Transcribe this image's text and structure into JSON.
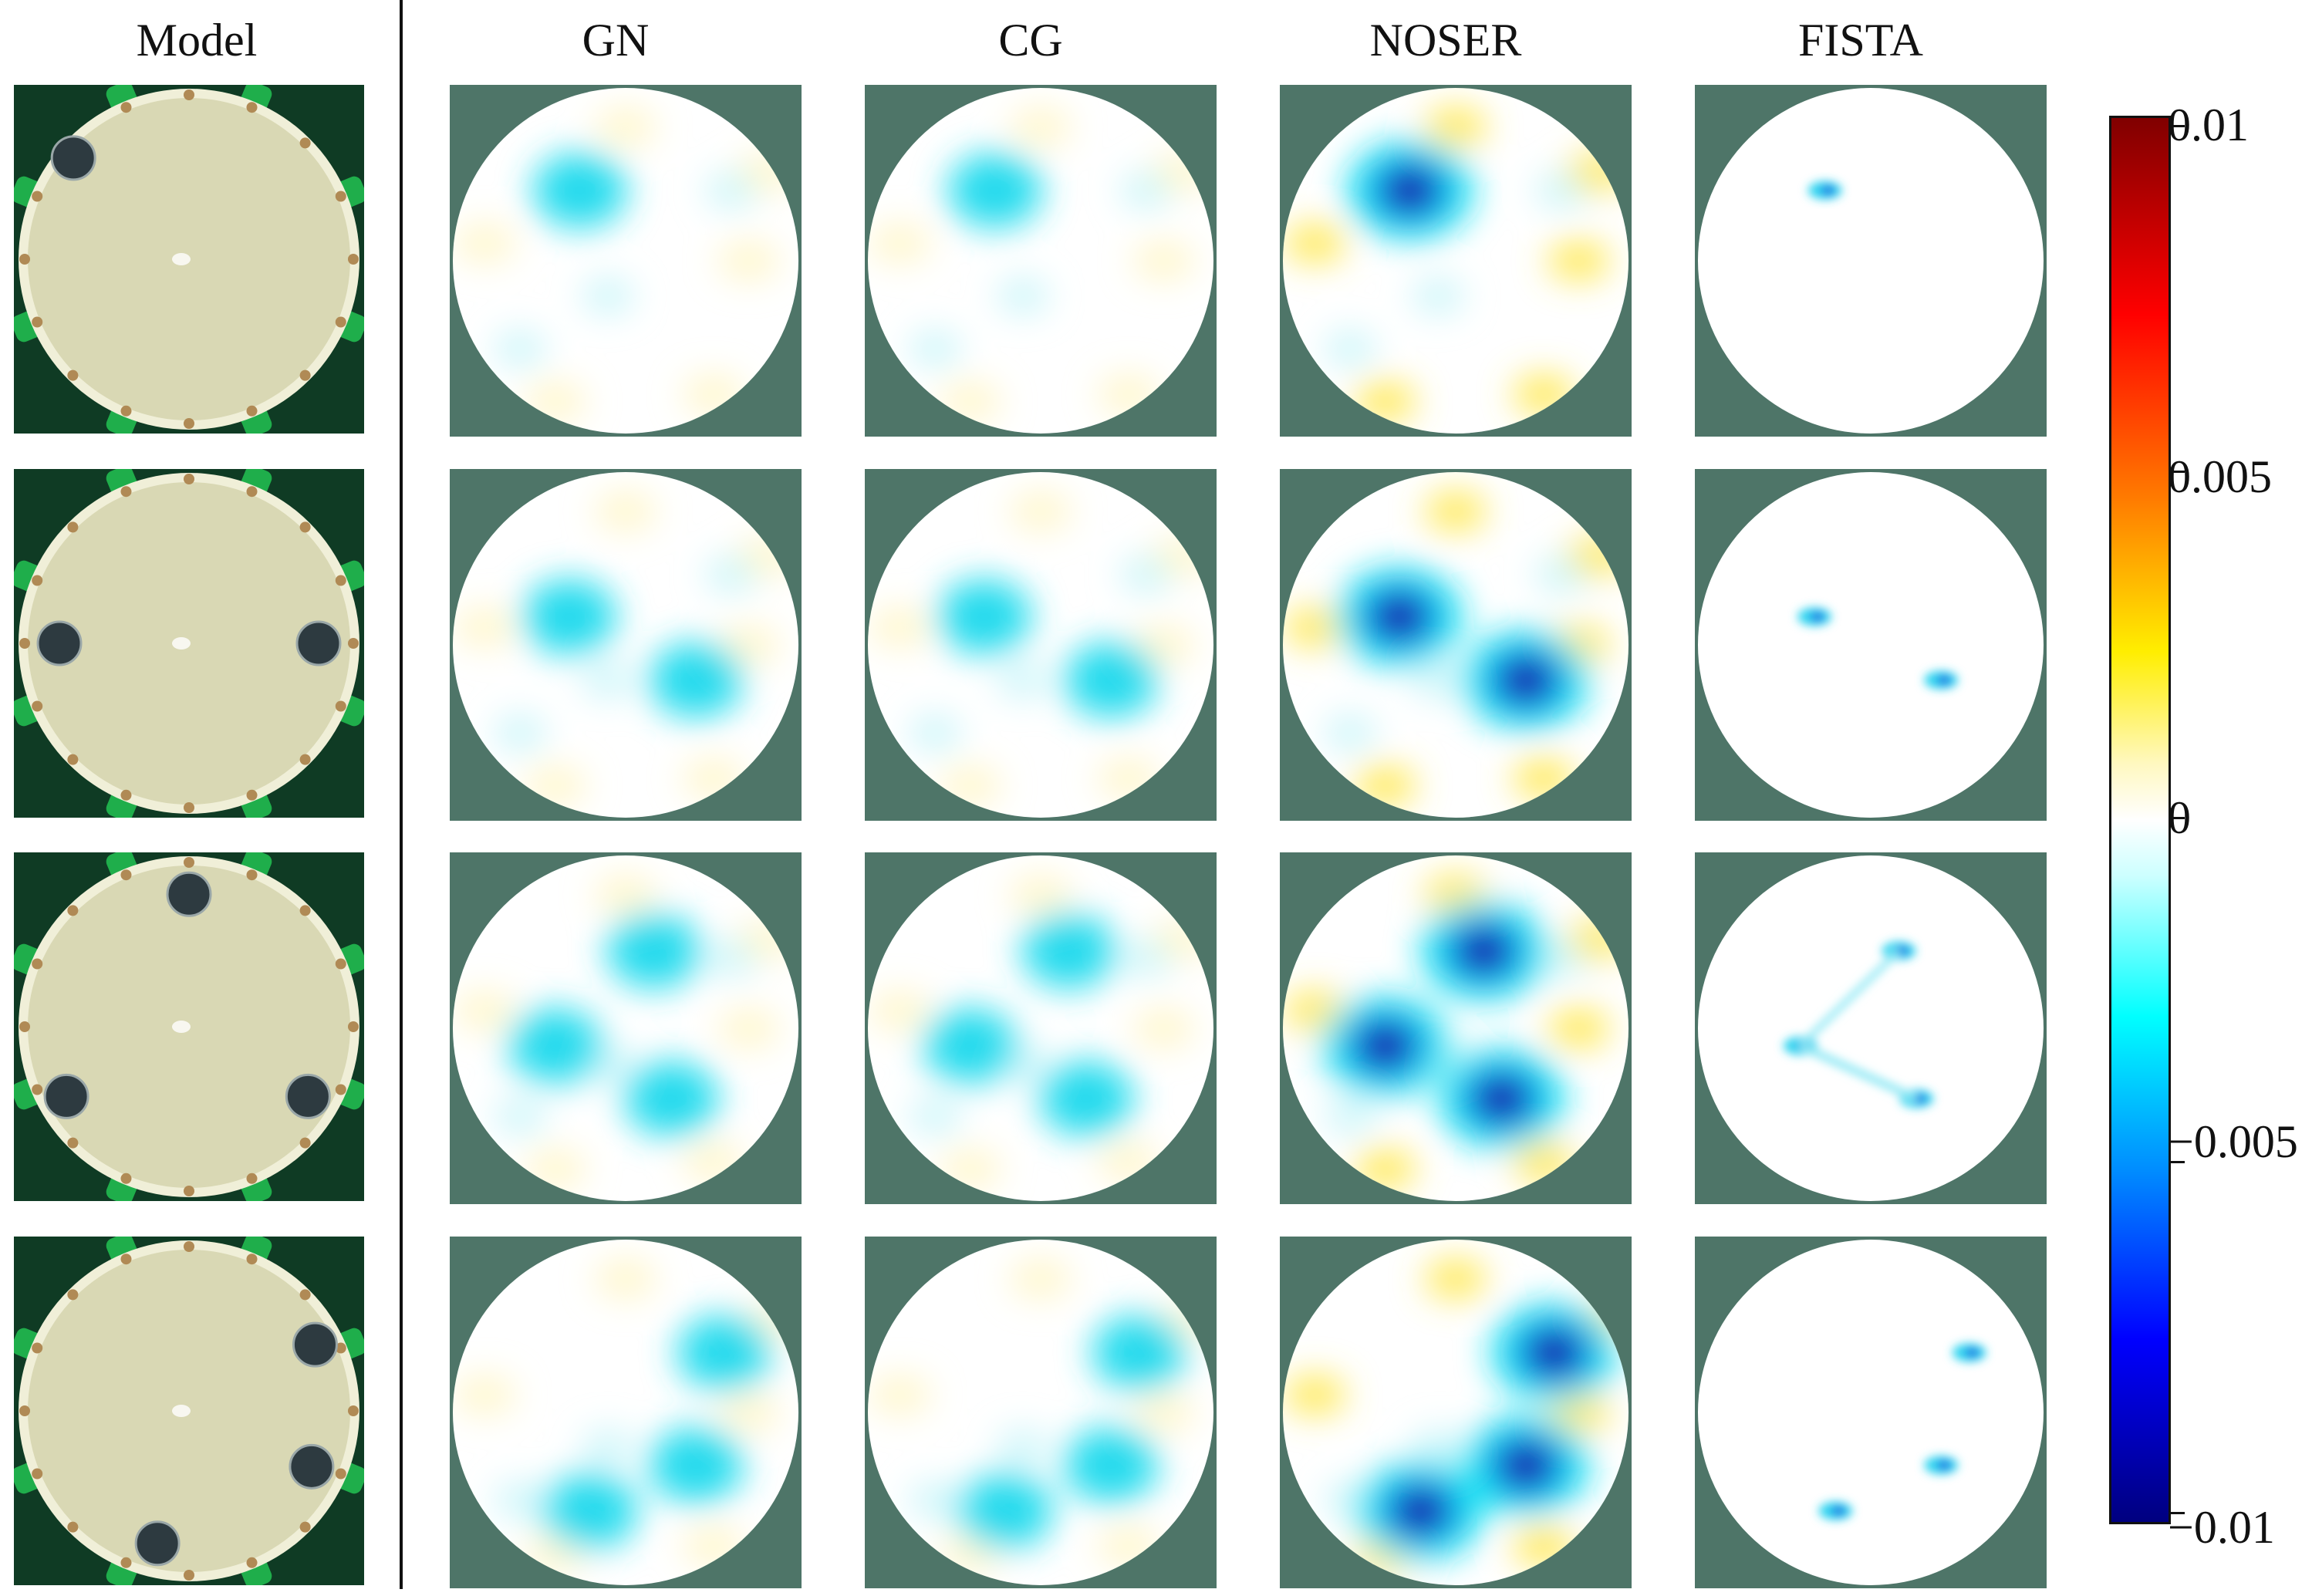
{
  "columns": [
    {
      "key": "model",
      "title": "Model"
    },
    {
      "key": "gn",
      "title": "GN"
    },
    {
      "key": "cg",
      "title": "CG"
    },
    {
      "key": "noser",
      "title": "NOSER"
    },
    {
      "key": "fista",
      "title": "FISTA"
    }
  ],
  "colorbar": {
    "ticks": [
      {
        "value": 0.01,
        "label": "0.01"
      },
      {
        "value": 0.005,
        "label": "0.005"
      },
      {
        "value": 0,
        "label": "0"
      },
      {
        "value": -0.005,
        "label": "−0.005"
      },
      {
        "value": -0.01,
        "label": "−0.01"
      }
    ],
    "range": [
      -0.01,
      0.01
    ],
    "colormap": [
      "#00007f",
      "#0000ff",
      "#008cff",
      "#00ffff",
      "#ccffff",
      "#ffffff",
      "#fff8c0",
      "#ffee00",
      "#ff7a00",
      "#ff0000",
      "#800000"
    ]
  },
  "colors": {
    "background_mask": "#4e7568",
    "tank_fill": "#d9d8b4",
    "tank_rim": "#f0efd8",
    "electrode": "#b08a55",
    "connector": "#1fae4b",
    "weight": "#2d3a40"
  },
  "objects_per_row": [
    1,
    2,
    3,
    3
  ]
}
